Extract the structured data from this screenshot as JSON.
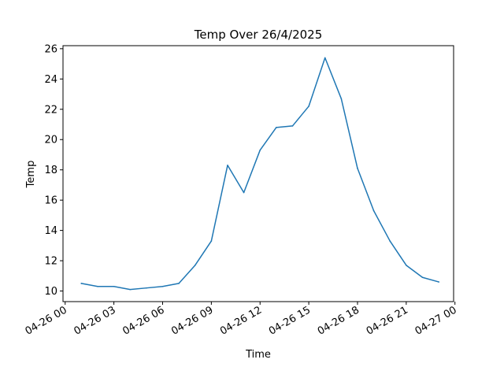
{
  "chart_data": {
    "type": "line",
    "title": "Temp Over 26/4/2025",
    "xlabel": "Time",
    "ylabel": "Temp",
    "x_ticks": [
      "04-26 00",
      "04-26 03",
      "04-26 06",
      "04-26 09",
      "04-26 12",
      "04-26 15",
      "04-26 18",
      "04-26 21",
      "04-27 00"
    ],
    "y_ticks": [
      10,
      12,
      14,
      16,
      18,
      20,
      22,
      24,
      26
    ],
    "xlim": [
      "2025-04-25 23:52",
      "2025-04-26 23:55"
    ],
    "ylim": [
      9.3,
      26.2
    ],
    "grid": false,
    "series": [
      {
        "color": "#1f77b4",
        "x": [
          "2025-04-26 01:00",
          "2025-04-26 02:00",
          "2025-04-26 03:00",
          "2025-04-26 04:00",
          "2025-04-26 05:00",
          "2025-04-26 06:00",
          "2025-04-26 07:00",
          "2025-04-26 08:00",
          "2025-04-26 09:00",
          "2025-04-26 10:00",
          "2025-04-26 11:00",
          "2025-04-26 12:00",
          "2025-04-26 13:00",
          "2025-04-26 14:00",
          "2025-04-26 15:00",
          "2025-04-26 16:00",
          "2025-04-26 17:00",
          "2025-04-26 18:00",
          "2025-04-26 19:00",
          "2025-04-26 20:00",
          "2025-04-26 21:00",
          "2025-04-26 22:00",
          "2025-04-26 23:00"
        ],
        "values": [
          10.5,
          10.3,
          10.3,
          10.1,
          10.2,
          10.3,
          10.5,
          11.7,
          13.3,
          18.3,
          16.5,
          19.3,
          20.8,
          20.9,
          22.2,
          25.4,
          22.7,
          18.1,
          15.3,
          13.3,
          11.7,
          10.9,
          10.6
        ]
      }
    ]
  }
}
